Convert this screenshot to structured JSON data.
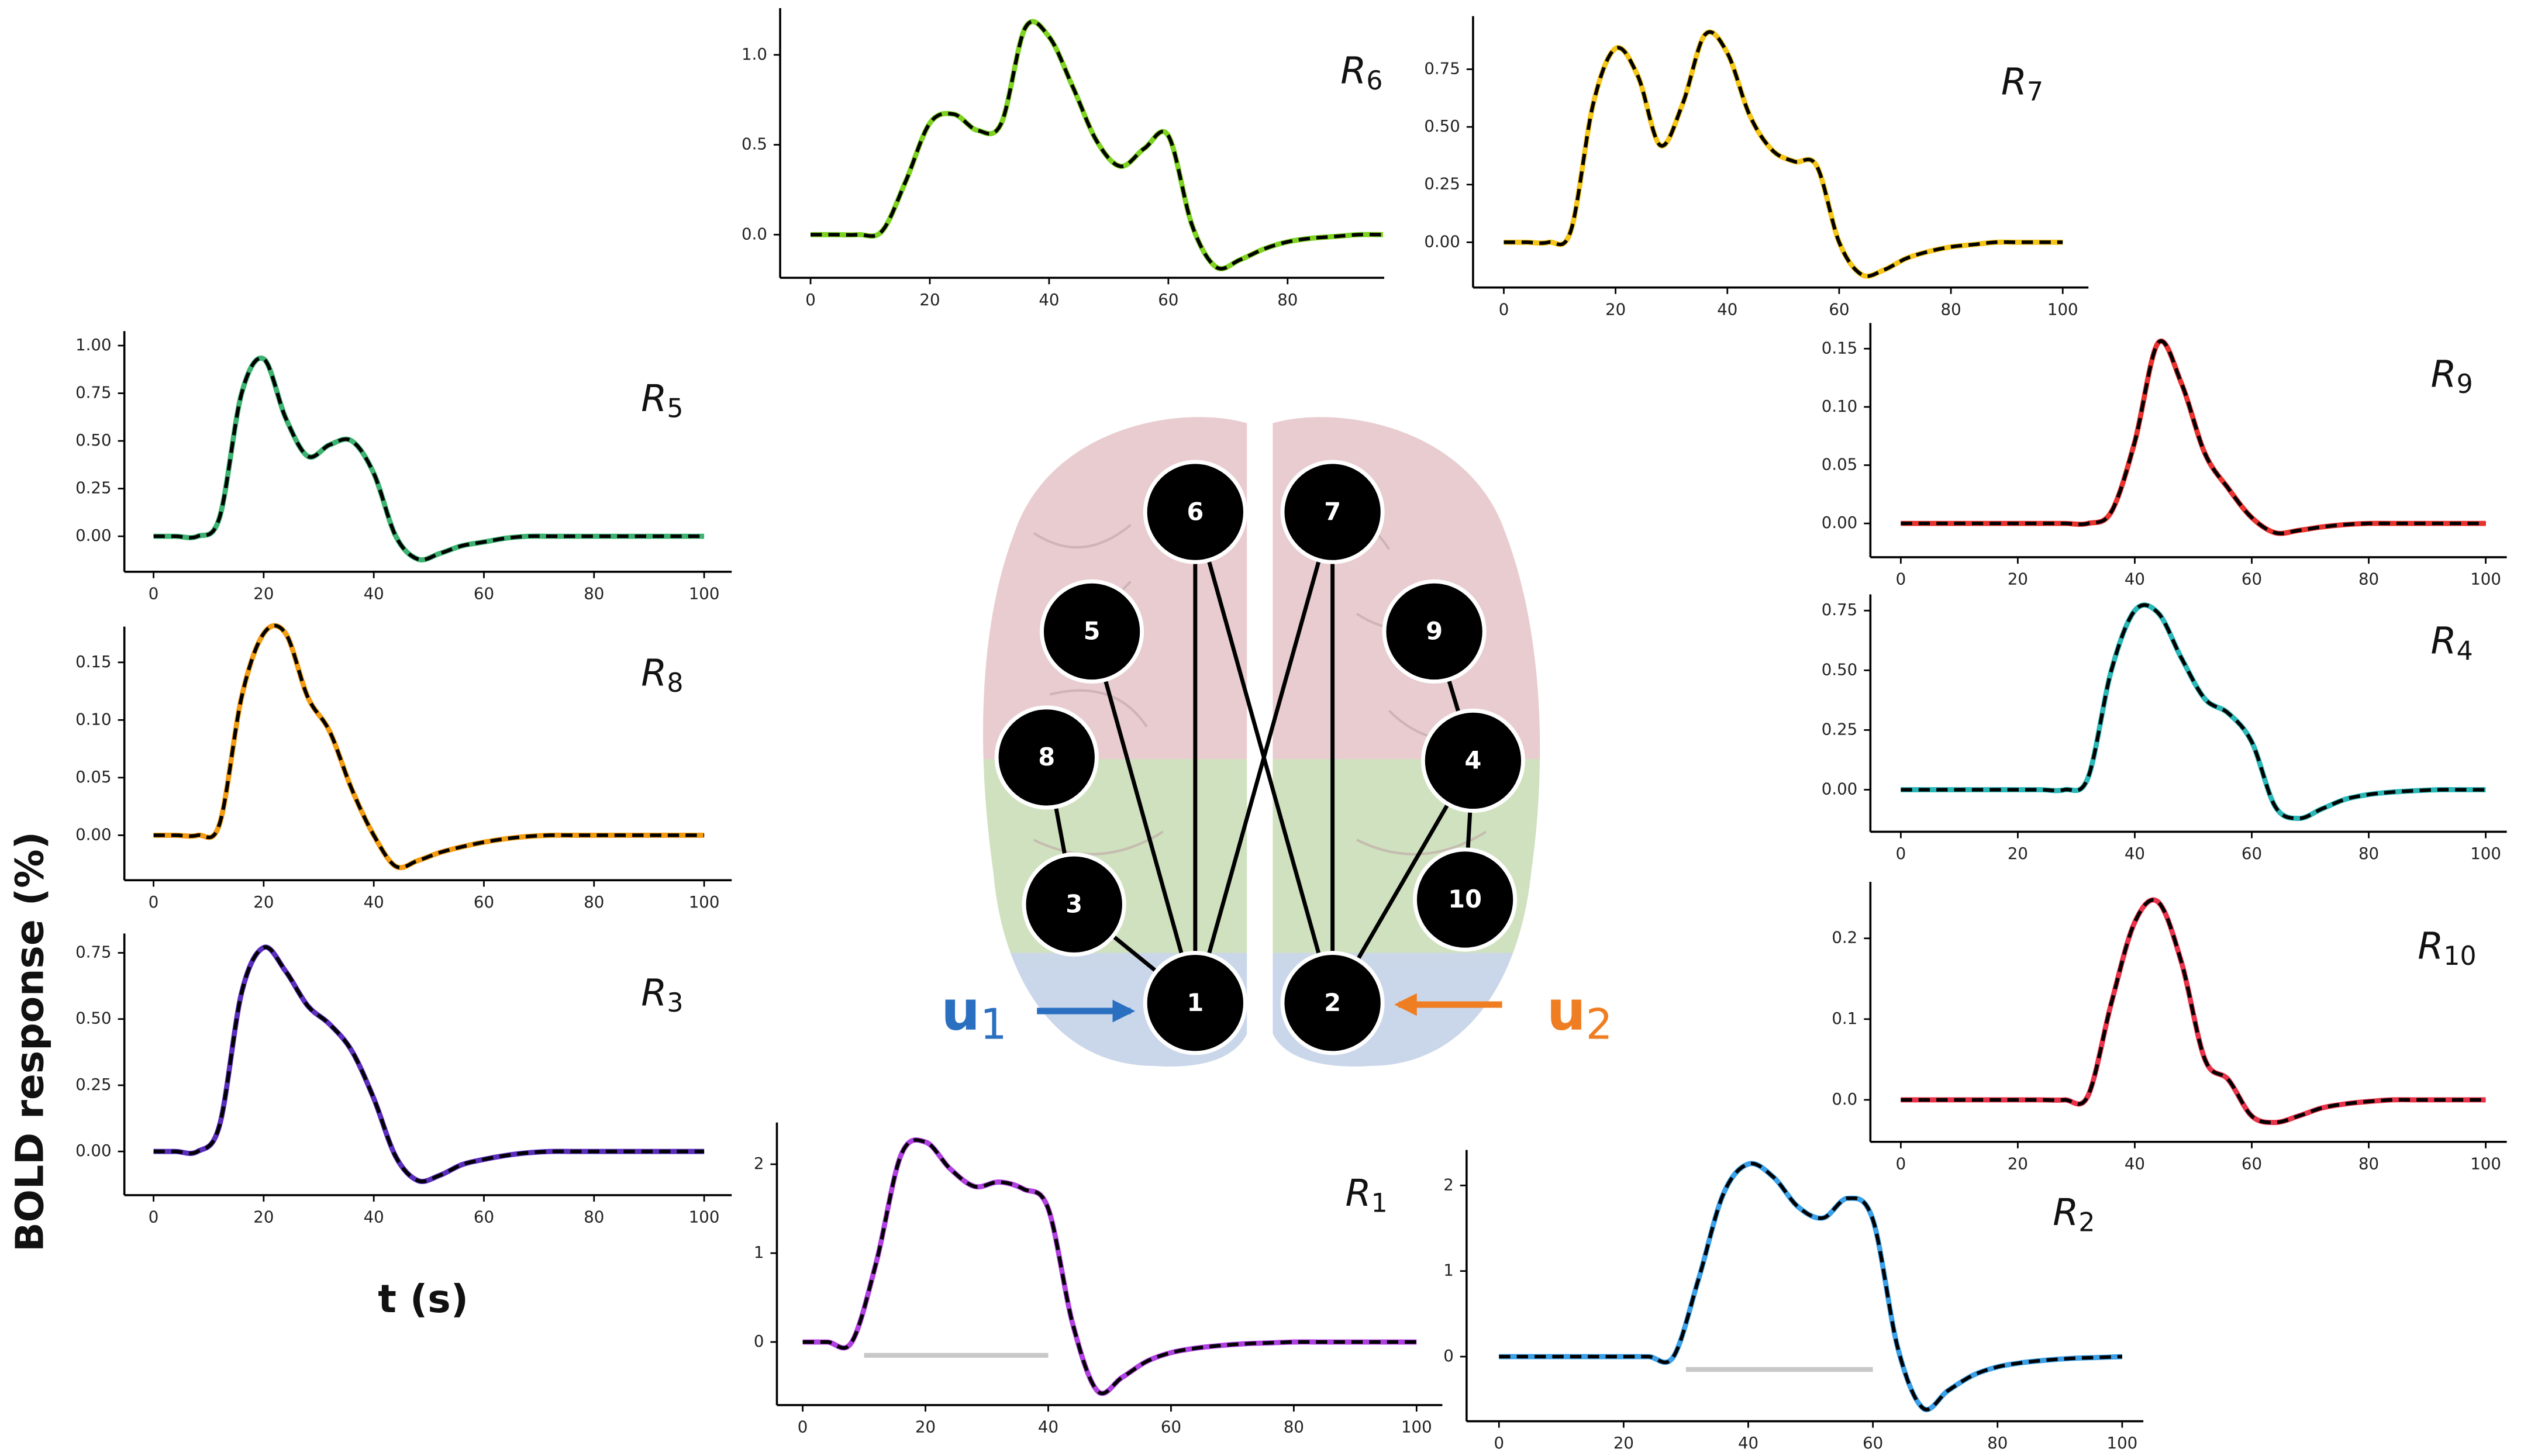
{
  "figure": {
    "ylabel": "BOLD response (%)",
    "xlabel": "t (s)"
  },
  "diagram": {
    "nodes": [
      "1",
      "2",
      "3",
      "4",
      "5",
      "6",
      "7",
      "8",
      "9",
      "10"
    ],
    "inputs": [
      {
        "text": "u",
        "sub": "1",
        "color": "#2a6fc0"
      },
      {
        "text": "u",
        "sub": "2",
        "color": "#ef7d22"
      }
    ]
  },
  "chart_data": [
    {
      "type": "line",
      "title": "R",
      "title_sub": "6",
      "x": [
        0,
        4,
        8,
        12,
        16,
        20,
        24,
        28,
        32,
        36,
        40,
        44,
        48,
        52,
        56,
        60,
        64,
        68,
        72,
        76,
        80,
        84,
        88,
        92,
        96
      ],
      "series": [
        {
          "color": "#7ed321",
          "values": [
            0,
            0,
            0,
            0.02,
            0.3,
            0.62,
            0.67,
            0.58,
            0.62,
            1.15,
            1.1,
            0.82,
            0.52,
            0.38,
            0.48,
            0.55,
            0.05,
            -0.18,
            -0.14,
            -0.08,
            -0.04,
            -0.02,
            -0.01,
            0,
            0
          ]
        }
      ],
      "fit_color": "#000000",
      "xlim": [
        -5.1,
        96.2
      ],
      "ylim": [
        -0.24,
        1.26
      ],
      "xticks": [
        0,
        20,
        40,
        60,
        80
      ],
      "yticks": [
        {
          "value": 0,
          "label": "0.0"
        },
        {
          "value": 0.5,
          "label": "0.5"
        },
        {
          "value": 1,
          "label": "1.0"
        }
      ]
    },
    {
      "type": "line",
      "title": "R",
      "title_sub": "7",
      "x": [
        0,
        4,
        8,
        12,
        16,
        20,
        24,
        28,
        32,
        36,
        40,
        44,
        48,
        52,
        56,
        60,
        64,
        68,
        72,
        76,
        80,
        84,
        88,
        92,
        96,
        100
      ],
      "series": [
        {
          "color": "#f5c518",
          "values": [
            0,
            0,
            0,
            0.05,
            0.6,
            0.84,
            0.72,
            0.42,
            0.6,
            0.9,
            0.82,
            0.55,
            0.4,
            0.35,
            0.33,
            0,
            -0.14,
            -0.12,
            -0.07,
            -0.04,
            -0.02,
            -0.01,
            0,
            0,
            0,
            0
          ]
        }
      ],
      "fit_color": "#000000",
      "xlim": [
        -5.5,
        104.6
      ],
      "ylim": [
        -0.196,
        0.98
      ],
      "xticks": [
        0,
        20,
        40,
        60,
        80,
        100
      ],
      "yticks": [
        {
          "value": 0,
          "label": "0.00"
        },
        {
          "value": 0.25,
          "label": "0.25"
        },
        {
          "value": 0.5,
          "label": "0.50"
        },
        {
          "value": 0.75,
          "label": "0.75"
        }
      ]
    },
    {
      "type": "line",
      "title": "R",
      "title_sub": "5",
      "x": [
        0,
        4,
        8,
        12,
        16,
        20,
        24,
        28,
        32,
        36,
        40,
        44,
        48,
        52,
        56,
        60,
        64,
        68,
        72,
        76,
        80,
        84,
        88,
        92,
        96,
        100
      ],
      "series": [
        {
          "color": "#3cb371",
          "values": [
            0,
            0,
            0,
            0.1,
            0.75,
            0.93,
            0.62,
            0.42,
            0.48,
            0.5,
            0.33,
            0,
            -0.12,
            -0.09,
            -0.05,
            -0.03,
            -0.01,
            0,
            0,
            0,
            0,
            0,
            0,
            0,
            0,
            0
          ]
        }
      ],
      "fit_color": "#000000",
      "xlim": [
        -5.3,
        105
      ],
      "ylim": [
        -0.186,
        1.076
      ],
      "xticks": [
        0,
        20,
        40,
        60,
        80,
        100
      ],
      "yticks": [
        {
          "value": 0,
          "label": "0.00"
        },
        {
          "value": 0.25,
          "label": "0.25"
        },
        {
          "value": 0.5,
          "label": "0.50"
        },
        {
          "value": 0.75,
          "label": "0.75"
        },
        {
          "value": 1,
          "label": "1.00"
        }
      ]
    },
    {
      "type": "line",
      "title": "R",
      "title_sub": "8",
      "x": [
        0,
        4,
        8,
        12,
        16,
        20,
        24,
        28,
        32,
        36,
        40,
        44,
        48,
        52,
        56,
        60,
        64,
        68,
        72,
        76,
        80,
        84,
        88,
        92,
        96,
        100
      ],
      "series": [
        {
          "color": "#f39c12",
          "values": [
            0,
            0,
            0,
            0.01,
            0.12,
            0.175,
            0.175,
            0.12,
            0.09,
            0.04,
            0,
            -0.027,
            -0.022,
            -0.015,
            -0.01,
            -0.006,
            -0.003,
            -0.001,
            0,
            0,
            0,
            0,
            0,
            0,
            0,
            0
          ]
        }
      ],
      "fit_color": "#000000",
      "xlim": [
        -5.3,
        105
      ],
      "ylim": [
        -0.039,
        0.181
      ],
      "xticks": [
        0,
        20,
        40,
        60,
        80,
        100
      ],
      "yticks": [
        {
          "value": 0,
          "label": "0.00"
        },
        {
          "value": 0.05,
          "label": "0.05"
        },
        {
          "value": 0.1,
          "label": "0.10"
        },
        {
          "value": 0.15,
          "label": "0.15"
        }
      ]
    },
    {
      "type": "line",
      "title": "R",
      "title_sub": "3",
      "x": [
        0,
        4,
        8,
        12,
        16,
        20,
        24,
        28,
        32,
        36,
        40,
        44,
        48,
        52,
        56,
        60,
        64,
        68,
        72,
        76,
        80,
        84,
        88,
        92,
        96,
        100
      ],
      "series": [
        {
          "color": "#5b2dbd",
          "values": [
            0,
            0,
            0,
            0.1,
            0.6,
            0.77,
            0.68,
            0.55,
            0.48,
            0.38,
            0.2,
            -0.02,
            -0.11,
            -0.09,
            -0.05,
            -0.03,
            -0.015,
            -0.005,
            0,
            0,
            0,
            0,
            0,
            0,
            0,
            0
          ]
        }
      ],
      "fit_color": "#000000",
      "xlim": [
        -5.3,
        105
      ],
      "ylim": [
        -0.165,
        0.823
      ],
      "xticks": [
        0,
        20,
        40,
        60,
        80,
        100
      ],
      "yticks": [
        {
          "value": 0,
          "label": "0.00"
        },
        {
          "value": 0.25,
          "label": "0.25"
        },
        {
          "value": 0.5,
          "label": "0.50"
        },
        {
          "value": 0.75,
          "label": "0.75"
        }
      ]
    },
    {
      "type": "line",
      "title": "R",
      "title_sub": "9",
      "x": [
        0,
        4,
        8,
        12,
        16,
        20,
        24,
        28,
        32,
        36,
        40,
        44,
        48,
        52,
        56,
        60,
        64,
        68,
        72,
        76,
        80,
        84,
        88,
        92,
        96,
        100
      ],
      "series": [
        {
          "color": "#e8322e",
          "values": [
            0,
            0,
            0,
            0,
            0,
            0,
            0,
            0,
            0,
            0.01,
            0.07,
            0.155,
            0.12,
            0.06,
            0.03,
            0.005,
            -0.008,
            -0.006,
            -0.003,
            -0.001,
            0,
            0,
            0,
            0,
            0,
            0
          ]
        }
      ],
      "fit_color": "#000000",
      "xlim": [
        -5.2,
        103.6
      ],
      "ylim": [
        -0.029,
        0.172
      ],
      "xticks": [
        0,
        20,
        40,
        60,
        80,
        100
      ],
      "yticks": [
        {
          "value": 0,
          "label": "0.00"
        },
        {
          "value": 0.05,
          "label": "0.05"
        },
        {
          "value": 0.1,
          "label": "0.10"
        },
        {
          "value": 0.15,
          "label": "0.15"
        }
      ]
    },
    {
      "type": "line",
      "title": "R",
      "title_sub": "4",
      "x": [
        0,
        4,
        8,
        12,
        16,
        20,
        24,
        28,
        32,
        36,
        40,
        44,
        48,
        52,
        56,
        60,
        64,
        68,
        72,
        76,
        80,
        84,
        88,
        92,
        96,
        100
      ],
      "series": [
        {
          "color": "#2ab7b7",
          "values": [
            0,
            0,
            0,
            0,
            0,
            0,
            0,
            0,
            0.05,
            0.5,
            0.75,
            0.74,
            0.55,
            0.38,
            0.32,
            0.2,
            -0.07,
            -0.12,
            -0.08,
            -0.04,
            -0.02,
            -0.01,
            -0.004,
            0,
            0,
            0
          ]
        }
      ],
      "fit_color": "#000000",
      "xlim": [
        -5.2,
        103.6
      ],
      "ylim": [
        -0.176,
        0.818
      ],
      "xticks": [
        0,
        20,
        40,
        60,
        80,
        100
      ],
      "yticks": [
        {
          "value": 0,
          "label": "0.00"
        },
        {
          "value": 0.25,
          "label": "0.25"
        },
        {
          "value": 0.5,
          "label": "0.50"
        },
        {
          "value": 0.75,
          "label": "0.75"
        }
      ]
    },
    {
      "type": "line",
      "title": "R",
      "title_sub": "10",
      "x": [
        0,
        4,
        8,
        12,
        16,
        20,
        24,
        28,
        32,
        36,
        40,
        44,
        48,
        52,
        56,
        60,
        64,
        68,
        72,
        76,
        80,
        84,
        88,
        92,
        96,
        100
      ],
      "series": [
        {
          "color": "#e8324a",
          "values": [
            0,
            0,
            0,
            0,
            0,
            0,
            0,
            0,
            0.005,
            0.12,
            0.22,
            0.245,
            0.17,
            0.05,
            0.025,
            -0.02,
            -0.028,
            -0.02,
            -0.01,
            -0.005,
            -0.002,
            0,
            0,
            0,
            0,
            0
          ]
        }
      ],
      "fit_color": "#000000",
      "xlim": [
        -5.2,
        103.6
      ],
      "ylim": [
        -0.052,
        0.27
      ],
      "xticks": [
        0,
        20,
        40,
        60,
        80,
        100
      ],
      "yticks": [
        {
          "value": 0,
          "label": "0.0"
        },
        {
          "value": 0.1,
          "label": "0.1"
        },
        {
          "value": 0.2,
          "label": "0.2"
        }
      ]
    },
    {
      "type": "line",
      "title": "R",
      "title_sub": "1",
      "x": [
        0,
        4,
        8,
        12,
        16,
        20,
        24,
        28,
        32,
        36,
        40,
        44,
        48,
        52,
        56,
        60,
        64,
        68,
        72,
        76,
        80,
        84,
        88,
        92,
        96,
        100
      ],
      "series": [
        {
          "color": "#b040e0",
          "values": [
            0,
            0,
            0,
            0.9,
            2.1,
            2.25,
            1.95,
            1.75,
            1.8,
            1.72,
            1.5,
            0.2,
            -0.55,
            -0.4,
            -0.22,
            -0.12,
            -0.07,
            -0.04,
            -0.02,
            -0.01,
            0,
            0,
            0,
            0,
            0,
            0
          ]
        }
      ],
      "fit_color": "#000000",
      "stimulus": {
        "x": [
          10,
          40
        ],
        "y": -0.15,
        "color": "#c8c8c8"
      },
      "xlim": [
        -4.2,
        104.2
      ],
      "ylim": [
        -0.71,
        2.47
      ],
      "xticks": [
        0,
        20,
        40,
        60,
        80,
        100
      ],
      "yticks": [
        0,
        1,
        2
      ]
    },
    {
      "type": "line",
      "title": "R",
      "title_sub": "2",
      "x": [
        0,
        4,
        8,
        12,
        16,
        20,
        24,
        28,
        32,
        36,
        40,
        44,
        48,
        52,
        56,
        60,
        64,
        68,
        72,
        76,
        80,
        84,
        88,
        92,
        96,
        100
      ],
      "series": [
        {
          "color": "#3aa0e8",
          "values": [
            0,
            0,
            0,
            0,
            0,
            0,
            0,
            0,
            0.9,
            1.9,
            2.25,
            2.1,
            1.75,
            1.62,
            1.85,
            1.6,
            0.1,
            -0.6,
            -0.4,
            -0.22,
            -0.12,
            -0.07,
            -0.04,
            -0.02,
            -0.01,
            0
          ]
        }
      ],
      "fit_color": "#000000",
      "stimulus": {
        "x": [
          30,
          60
        ],
        "y": -0.15,
        "color": "#c8c8c8"
      },
      "xlim": [
        -5.2,
        103.4
      ],
      "ylim": [
        -0.755,
        2.415
      ],
      "xticks": [
        0,
        20,
        40,
        60,
        80,
        100
      ],
      "yticks": [
        0,
        1,
        2
      ]
    }
  ]
}
